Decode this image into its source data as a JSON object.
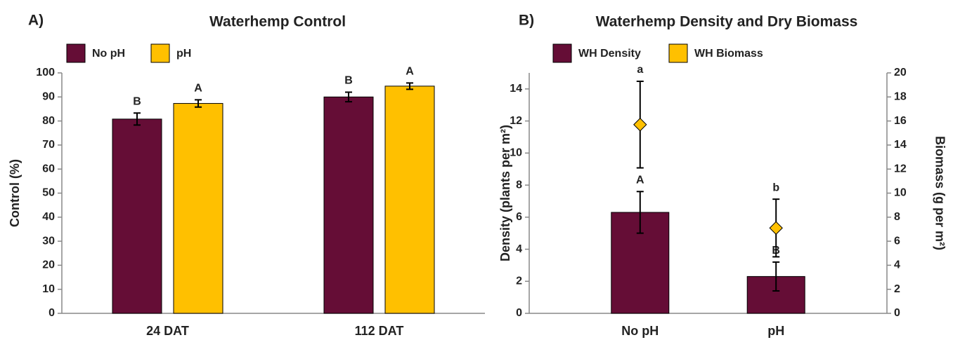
{
  "chart_data": [
    {
      "type": "bar",
      "panel": "A)",
      "title": "Waterhemp Control",
      "ylabel": "Control (%)",
      "categories": [
        "24 DAT",
        "112 DAT"
      ],
      "series": [
        {
          "name": "No pH",
          "color": "#650d36",
          "values": [
            80.8,
            90
          ],
          "errors": [
            2.5,
            2
          ],
          "letters": [
            "B",
            "B"
          ]
        },
        {
          "name": "pH",
          "color": "#ffc000",
          "values": [
            87.3,
            94.5
          ],
          "errors": [
            1.5,
            1.3
          ],
          "letters": [
            "A",
            "A"
          ]
        }
      ],
      "ylim": [
        0,
        100
      ],
      "yticks": [
        0,
        10,
        20,
        30,
        40,
        50,
        60,
        70,
        80,
        90,
        100
      ],
      "grid": false,
      "legend": "top-left"
    },
    {
      "type": "bar",
      "panel": "B)",
      "title": "Waterhemp Density and Dry Biomass",
      "ylabel": "Density (plants per m²)",
      "y2label": "Biomass (g per m²)",
      "categories": [
        "No pH",
        "pH"
      ],
      "series": [
        {
          "name": "WH Density",
          "color": "#650d36",
          "values": [
            6.3,
            2.3
          ],
          "errors": [
            1.3,
            0.9
          ],
          "letters": [
            "A",
            "B"
          ]
        },
        {
          "name": "WH Biomass",
          "color": "#ffc000",
          "type": "scatter",
          "marker": "diamond",
          "axis": "y2",
          "values": [
            15.7,
            7.1
          ],
          "errors": [
            3.6,
            2.4
          ],
          "letters": [
            "a",
            "b"
          ]
        }
      ],
      "ylim": [
        0,
        15
      ],
      "yticks": [
        0,
        2,
        4,
        6,
        8,
        10,
        12,
        14
      ],
      "y2lim": [
        0,
        20
      ],
      "y2ticks": [
        0,
        2,
        4,
        6,
        8,
        10,
        12,
        14,
        16,
        18,
        20
      ],
      "grid": false,
      "legend": "top-left"
    }
  ]
}
